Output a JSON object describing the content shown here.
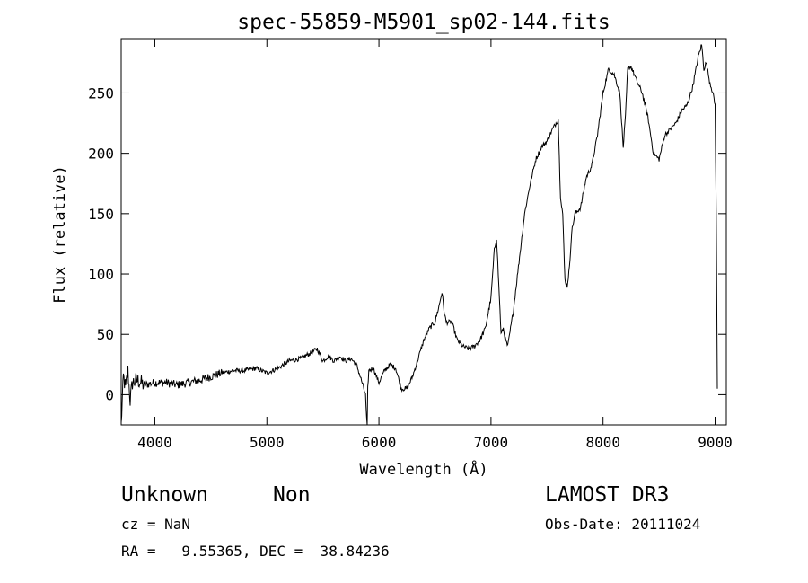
{
  "chart_data": {
    "type": "line",
    "title": "spec-55859-M5901_sp02-144.fits",
    "xlabel": "Wavelength (Å)",
    "ylabel": "Flux (relative)",
    "xlim": [
      3700,
      9100
    ],
    "ylim": [
      -25,
      295
    ],
    "x_ticks": [
      4000,
      5000,
      6000,
      7000,
      8000,
      9000
    ],
    "y_ticks": [
      0,
      50,
      100,
      150,
      200,
      250
    ],
    "x_tick_labels": [
      "4000",
      "5000",
      "6000",
      "7000",
      "8000",
      "9000"
    ],
    "y_tick_labels": [
      "0",
      "50",
      "100",
      "150",
      "200",
      "250"
    ],
    "series": [
      {
        "name": "spectrum",
        "x": [
          3700,
          3720,
          3740,
          3760,
          3780,
          3800,
          3850,
          3900,
          4000,
          4100,
          4200,
          4300,
          4400,
          4500,
          4600,
          4700,
          4800,
          4900,
          5000,
          5100,
          5200,
          5300,
          5400,
          5450,
          5500,
          5550,
          5600,
          5650,
          5700,
          5750,
          5800,
          5850,
          5880,
          5890,
          5895,
          5900,
          5910,
          5950,
          6000,
          6050,
          6100,
          6150,
          6200,
          6250,
          6300,
          6350,
          6400,
          6450,
          6500,
          6540,
          6563,
          6580,
          6600,
          6650,
          6700,
          6750,
          6800,
          6850,
          6900,
          6950,
          7000,
          7030,
          7050,
          7070,
          7090,
          7110,
          7130,
          7150,
          7200,
          7250,
          7300,
          7350,
          7400,
          7450,
          7500,
          7550,
          7580,
          7600,
          7620,
          7640,
          7660,
          7680,
          7700,
          7720,
          7750,
          7800,
          7850,
          7900,
          7950,
          8000,
          8050,
          8100,
          8150,
          8180,
          8200,
          8220,
          8250,
          8300,
          8350,
          8400,
          8450,
          8500,
          8550,
          8600,
          8650,
          8700,
          8750,
          8800,
          8850,
          8880,
          8900,
          8920,
          8950,
          8980,
          9000,
          9010,
          9020
        ],
        "y": [
          -25,
          15,
          5,
          20,
          -5,
          10,
          12,
          8,
          10,
          10,
          8,
          10,
          12,
          15,
          18,
          20,
          20,
          22,
          18,
          22,
          28,
          30,
          35,
          38,
          28,
          32,
          28,
          32,
          28,
          30,
          25,
          10,
          0,
          -20,
          -27,
          5,
          20,
          22,
          10,
          20,
          25,
          22,
          5,
          5,
          15,
          30,
          45,
          55,
          60,
          75,
          85,
          70,
          60,
          60,
          45,
          40,
          38,
          40,
          45,
          55,
          80,
          120,
          130,
          90,
          50,
          55,
          45,
          40,
          70,
          110,
          150,
          175,
          195,
          205,
          210,
          220,
          225,
          228,
          165,
          150,
          95,
          90,
          105,
          135,
          150,
          155,
          180,
          190,
          215,
          250,
          270,
          265,
          250,
          205,
          230,
          270,
          272,
          260,
          250,
          230,
          200,
          195,
          215,
          220,
          225,
          235,
          240,
          255,
          280,
          290,
          270,
          275,
          260,
          250,
          240,
          150,
          5
        ]
      }
    ]
  },
  "info": {
    "object_class": "Unknown",
    "object_subclass": "Non",
    "survey": "LAMOST DR3",
    "cz": "cz = NaN",
    "obs_date": "Obs-Date: 20111024",
    "radec": "RA =   9.55365, DEC =  38.84236"
  },
  "colors": {
    "line": "#000000",
    "background": "#ffffff"
  }
}
